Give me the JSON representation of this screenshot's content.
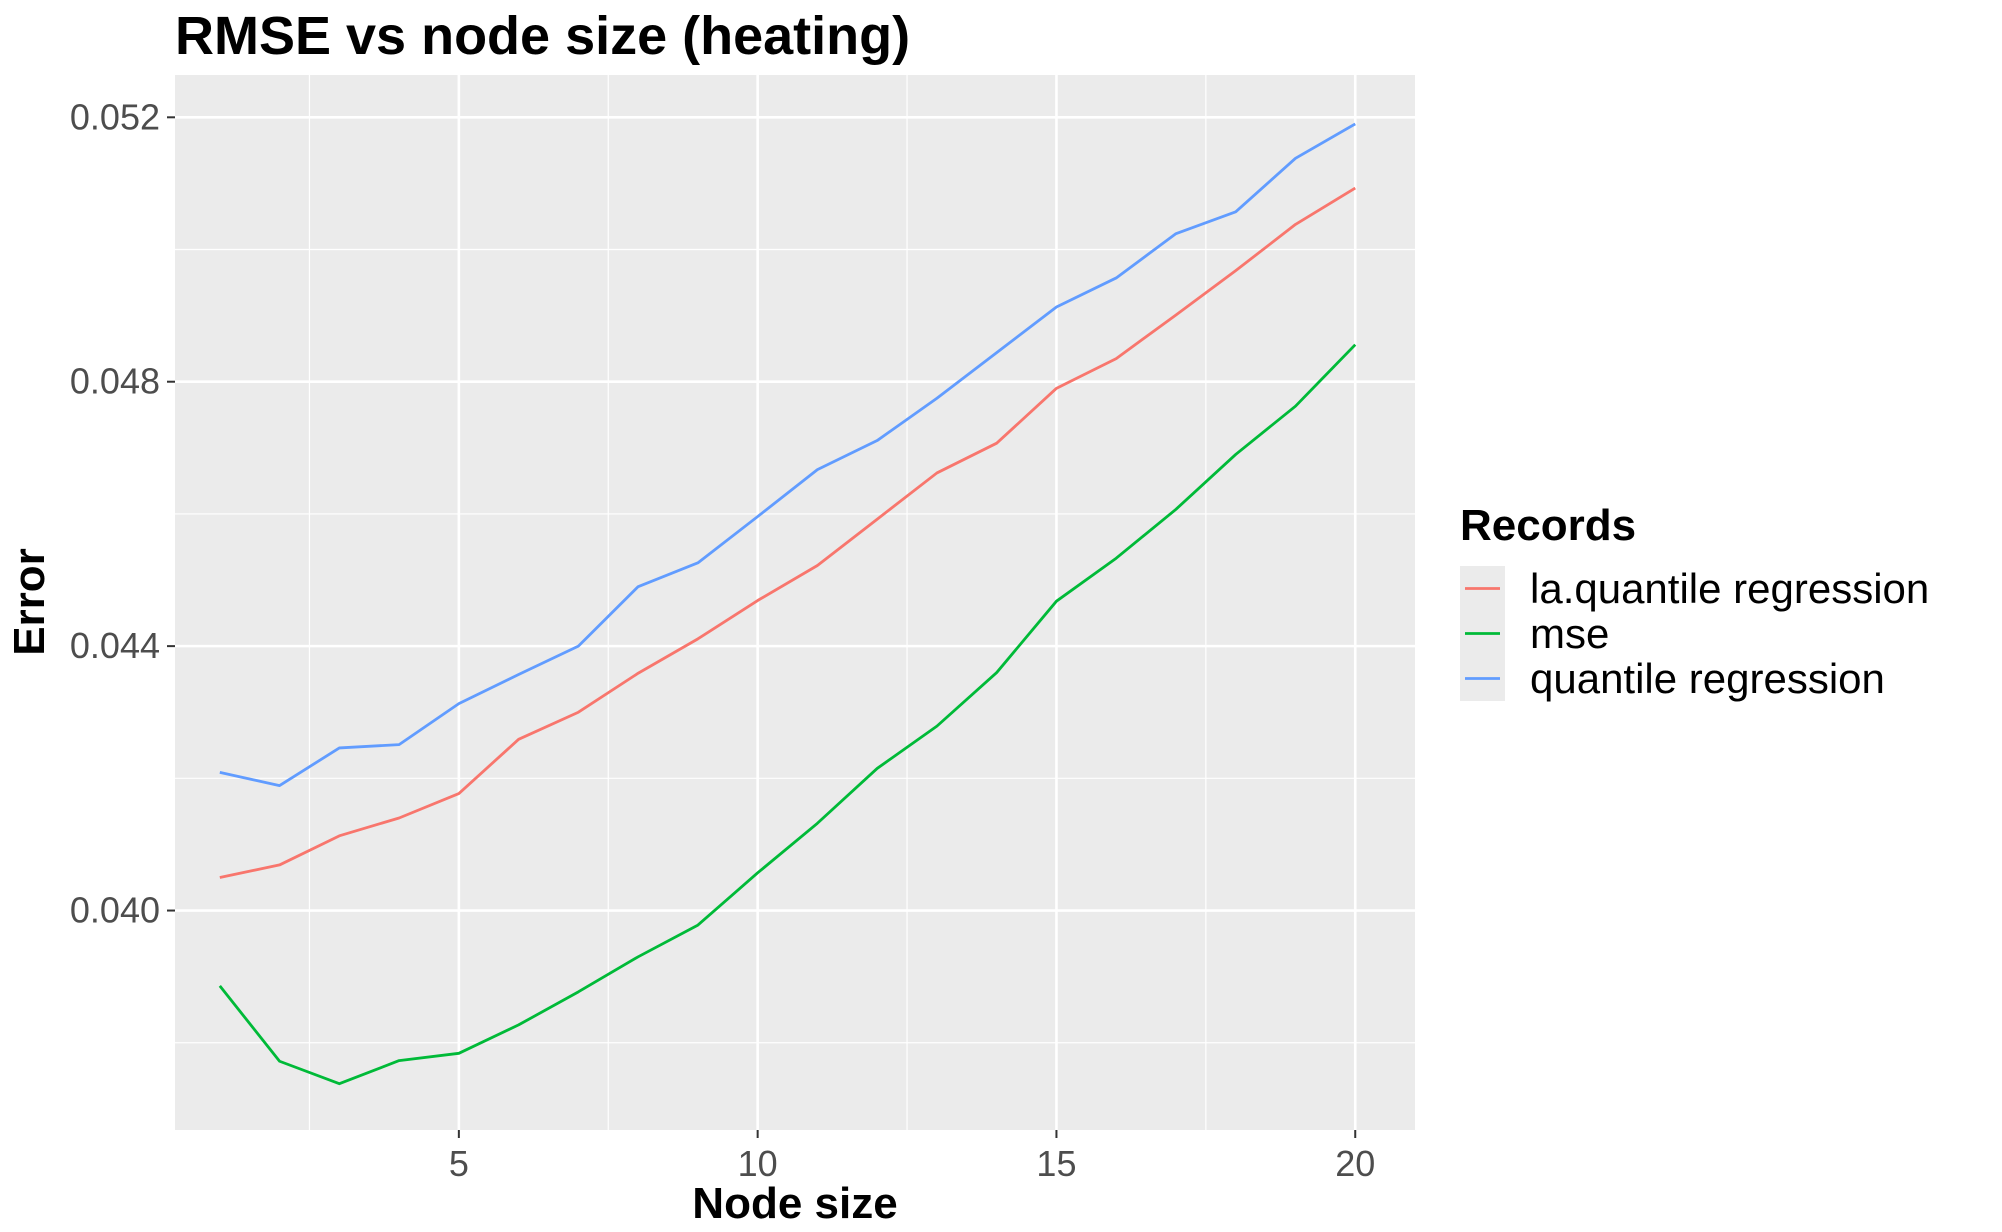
{
  "chart_data": {
    "type": "line",
    "title": "RMSE vs node size (heating)",
    "xlabel": "Node size",
    "ylabel": "Error",
    "xlim": [
      0.25,
      21.0
    ],
    "ylim": [
      0.03668,
      0.05264
    ],
    "x_ticks": [
      5,
      10,
      15,
      20
    ],
    "x_tick_labels": [
      "5",
      "10",
      "15",
      "20"
    ],
    "y_ticks": [
      0.04,
      0.044,
      0.048,
      0.052
    ],
    "y_tick_labels": [
      "0.040",
      "0.044",
      "0.048",
      "0.052"
    ],
    "grid": true,
    "legend": {
      "title": "Records",
      "position": "right"
    },
    "x": [
      1,
      2,
      3,
      4,
      5,
      6,
      7,
      8,
      9,
      10,
      11,
      12,
      13,
      14,
      15,
      16,
      17,
      18,
      19,
      20
    ],
    "series": [
      {
        "name": "la.quantile regression",
        "color": "#F8766D",
        "values": [
          0.0405,
          0.04069,
          0.04113,
          0.0414,
          0.04177,
          0.04259,
          0.043,
          0.04359,
          0.04411,
          0.04469,
          0.04522,
          0.04592,
          0.04662,
          0.04707,
          0.0479,
          0.04835,
          0.04901,
          0.04968,
          0.05038,
          0.05093
        ]
      },
      {
        "name": "mse",
        "color": "#00BA38",
        "values": [
          0.03886,
          0.03772,
          0.03738,
          0.03773,
          0.03784,
          0.03827,
          0.03877,
          0.0393,
          0.03978,
          0.04057,
          0.04132,
          0.04215,
          0.04279,
          0.0436,
          0.04468,
          0.04533,
          0.04607,
          0.0469,
          0.04763,
          0.04856
        ]
      },
      {
        "name": "quantile regression",
        "color": "#619CFF",
        "values": [
          0.04209,
          0.04189,
          0.04246,
          0.04251,
          0.04313,
          0.04357,
          0.044,
          0.0449,
          0.04526,
          0.04596,
          0.04667,
          0.04711,
          0.04775,
          0.04844,
          0.04913,
          0.04957,
          0.05024,
          0.05057,
          0.05138,
          0.0519
        ]
      }
    ]
  }
}
